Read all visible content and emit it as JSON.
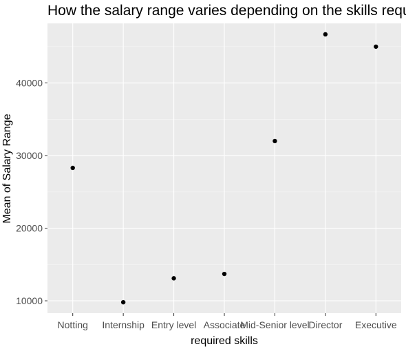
{
  "chart_data": {
    "type": "scatter",
    "title": "How the salary range varies depending on the skills required",
    "xlabel": "required skills",
    "ylabel": "Mean of Salary Range",
    "categories": [
      "Notting",
      "Internship",
      "Entry level",
      "Associate",
      "Mid-Senior level",
      "Director",
      "Executive"
    ],
    "values": [
      28300,
      9800,
      13100,
      13700,
      32000,
      46700,
      45000
    ],
    "ylim": [
      8300,
      48200
    ],
    "yticks": [
      10000,
      20000,
      30000,
      40000
    ],
    "grid": true,
    "legend": "none",
    "colors": {
      "panel": "#ebebeb",
      "grid_major": "#ffffff",
      "grid_minor": "#f5f5f5",
      "point": "#000000"
    }
  }
}
